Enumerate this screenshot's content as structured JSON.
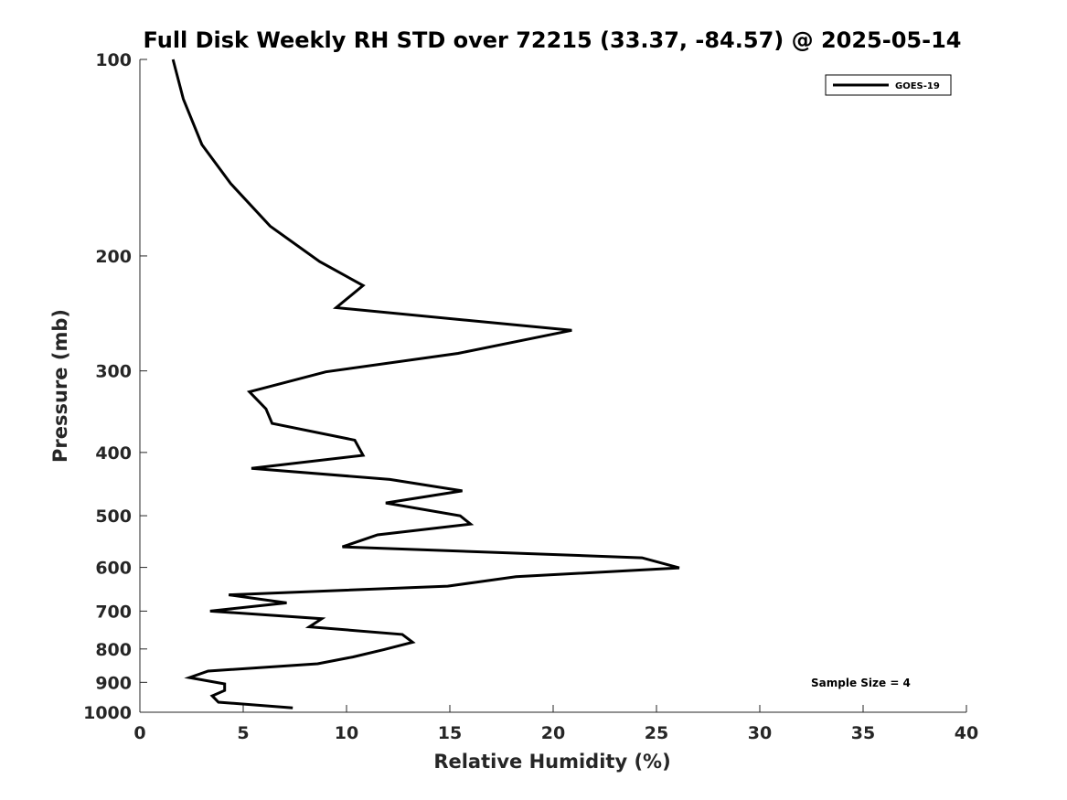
{
  "chart_data": {
    "type": "line",
    "title": "Full Disk Weekly RH STD over 72215 (33.37, -84.57) @ 2025-05-14",
    "xlabel": "Relative Humidity (%)",
    "ylabel": "Pressure (mb)",
    "xlim": [
      0,
      40
    ],
    "ylim": [
      100,
      1000
    ],
    "y_scale": "log",
    "y_reversed": true,
    "x_ticks": [
      0,
      5,
      10,
      15,
      20,
      25,
      30,
      35,
      40
    ],
    "y_ticks": [
      100,
      200,
      300,
      400,
      500,
      600,
      700,
      800,
      900,
      1000
    ],
    "grid": false,
    "legend_position": "top-right",
    "line_color": "#000000",
    "series": [
      {
        "name": "GOES-19",
        "points": [
          [
            1.6,
            100
          ],
          [
            2.1,
            115
          ],
          [
            3.0,
            135
          ],
          [
            4.4,
            155
          ],
          [
            6.3,
            180
          ],
          [
            8.7,
            204
          ],
          [
            10.8,
            222
          ],
          [
            9.5,
            240
          ],
          [
            20.9,
            260
          ],
          [
            15.4,
            282
          ],
          [
            9.0,
            301
          ],
          [
            5.3,
            323
          ],
          [
            6.1,
            343
          ],
          [
            6.4,
            361
          ],
          [
            10.4,
            383
          ],
          [
            10.8,
            404
          ],
          [
            5.4,
            423
          ],
          [
            12.1,
            440
          ],
          [
            15.6,
            458
          ],
          [
            11.9,
            478
          ],
          [
            15.5,
            500
          ],
          [
            16.0,
            515
          ],
          [
            11.5,
            535
          ],
          [
            9.8,
            558
          ],
          [
            24.3,
            580
          ],
          [
            26.1,
            601
          ],
          [
            18.2,
            620
          ],
          [
            14.9,
            641
          ],
          [
            4.3,
            661
          ],
          [
            7.1,
            680
          ],
          [
            3.4,
            700
          ],
          [
            8.8,
            719
          ],
          [
            8.2,
            740
          ],
          [
            12.7,
            760
          ],
          [
            13.2,
            781
          ],
          [
            11.8,
            802
          ],
          [
            10.3,
            823
          ],
          [
            8.6,
            843
          ],
          [
            3.3,
            865
          ],
          [
            2.4,
            885
          ],
          [
            4.1,
            905
          ],
          [
            4.1,
            926
          ],
          [
            3.5,
            944
          ],
          [
            3.8,
            965
          ],
          [
            7.4,
            985
          ]
        ]
      }
    ],
    "annotations": [
      "Sample Size = 4"
    ]
  }
}
